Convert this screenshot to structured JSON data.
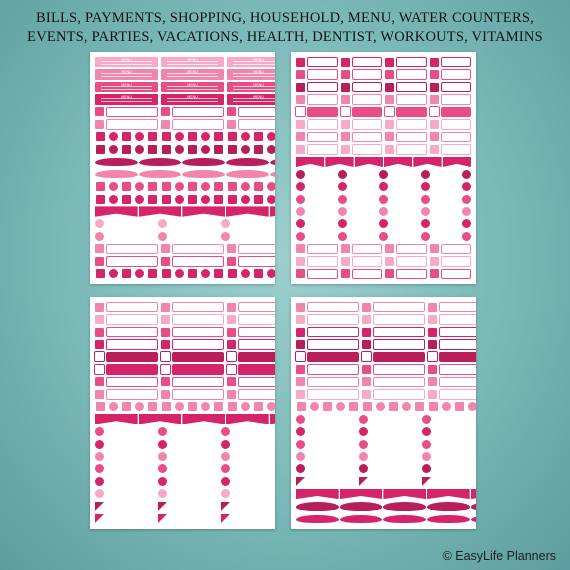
{
  "header": {
    "line1": "BILLS, PAYMENTS, SHOPPING, HOUSEHOLD, MENU, WATER COUNTERS,",
    "line2": "EVENTS, PARTIES, VACATIONS, HEALTH, DENTIST, WORKOUTS, VITAMINS"
  },
  "sticker_label": "MENU",
  "credit": "© EasyLife Planners",
  "colors": {
    "background": "#7ab9b8",
    "pink_light": "#f7a9c5",
    "pink_mid": "#f285ad",
    "pink_hot": "#e84d86",
    "magenta": "#d6246b",
    "raspberry": "#b81e5a",
    "blush": "#fbd0de"
  },
  "sheets": [
    {
      "name": "sheet-1"
    },
    {
      "name": "sheet-2"
    },
    {
      "name": "sheet-3"
    },
    {
      "name": "sheet-4"
    }
  ]
}
